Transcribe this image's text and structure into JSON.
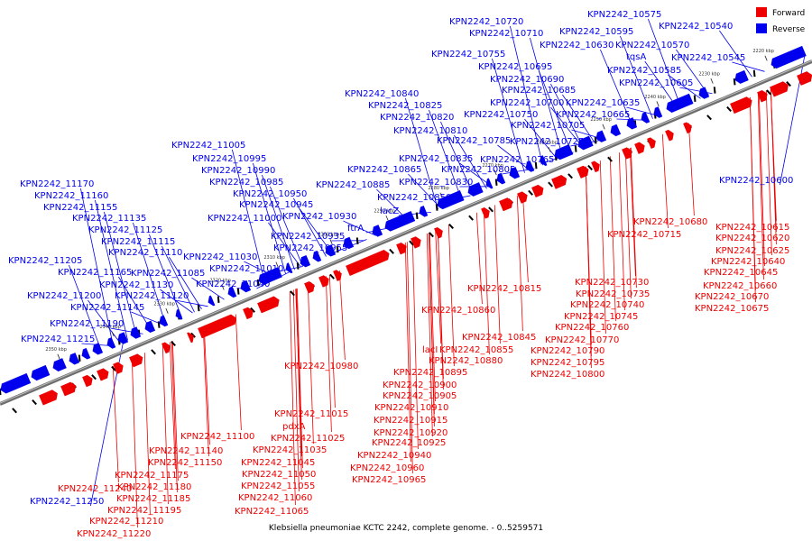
{
  "caption": "Klebsiella pneumoniae KCTC 2242, complete genome. - 0..5259571",
  "colors": {
    "forward": "#ee0000",
    "reverse": "#0000ee",
    "axis": "#555555",
    "background": "#ffffff"
  },
  "legend": [
    {
      "label": "Forward",
      "strand": "forward"
    },
    {
      "label": "Reverse",
      "strand": "reverse"
    }
  ],
  "ticks": [
    "2220 kbp",
    "2230 kbp",
    "2240 kbp",
    "2250 kbp",
    "2260 kbp",
    "2270 kbp",
    "2280 kbp",
    "2290 kbp",
    "2300 kbp",
    "2310 kbp",
    "2320 kbp",
    "2330 kbp",
    "2340 kbp",
    "2350 kbp"
  ],
  "reverse_genes": [
    "KPN2242_10575",
    "KPN2242_10540",
    "KPN2242_10720",
    "KPN2242_10710",
    "KPN2242_10595",
    "KPN2242_10630",
    "KPN2242_10570",
    "KPN2242_10755",
    "tqsA",
    "KPN2242_10545",
    "KPN2242_10695",
    "KPN2242_10585",
    "KPN2242_10690",
    "KPN2242_10605",
    "KPN2242_10685",
    "KPN2242_10840",
    "KPN2242_10700",
    "KPN2242_10635",
    "KPN2242_10825",
    "KPN2242_10750",
    "KPN2242_10665",
    "KPN2242_10820",
    "KPN2242_10705",
    "KPN2242_10810",
    "KPN2242_10785",
    "KPN2242_10725",
    "KPN2242_11005",
    "KPN2242_10835",
    "KPN2242_10765",
    "KPN2242_10995",
    "KPN2242_10865",
    "KPN2242_10805",
    "KPN2242_10990",
    "KPN2242_10830",
    "KPN2242_10600",
    "KPN2242_10985",
    "KPN2242_10885",
    "KPN2242_11170",
    "KPN2242_10950",
    "KPN2242_10850",
    "KPN2242_11160",
    "KPN2242_10945",
    "KPN2242_11155",
    "lacZ",
    "KPN2242_10930",
    "KPN2242_11000",
    "KPN2242_11135",
    "ftrA",
    "KPN2242_11125",
    "KPN2242_10935",
    "KPN2242_11115",
    "KPN2242_10955",
    "KPN2242_11110",
    "KPN2242_11205",
    "KPN2242_11030",
    "KPN2242_11085",
    "KPN2242_11165",
    "KPN2242_11010",
    "KPN2242_11130",
    "KPN2242_11040",
    "KPN2242_11200",
    "KPN2242_11120",
    "KPN2242_11145",
    "KPN2242_11190",
    "KPN2242_11215",
    "KPN2242_11250"
  ],
  "forward_genes": [
    "KPN2242_10680",
    "KPN2242_10615",
    "KPN2242_10715",
    "KPN2242_10620",
    "KPN2242_10625",
    "KPN2242_10640",
    "KPN2242_10645",
    "KPN2242_10660",
    "KPN2242_10730",
    "KPN2242_10815",
    "KPN2242_10670",
    "KPN2242_10735",
    "KPN2242_10740",
    "KPN2242_10675",
    "KPN2242_10860",
    "KPN2242_10745",
    "KPN2242_10760",
    "KPN2242_10845",
    "KPN2242_10770",
    "lacI",
    "KPN2242_10855",
    "KPN2242_10790",
    "KPN2242_10880",
    "KPN2242_10795",
    "KPN2242_10980",
    "KPN2242_10895",
    "KPN2242_10800",
    "KPN2242_10900",
    "KPN2242_10905",
    "KPN2242_10910",
    "KPN2242_11015",
    "KPN2242_10915",
    "pdxA",
    "KPN2242_10920",
    "KPN2242_11100",
    "KPN2242_11025",
    "KPN2242_10925",
    "KPN2242_11140",
    "KPN2242_11035",
    "KPN2242_10940",
    "KPN2242_11150",
    "KPN2242_11045",
    "KPN2242_10960",
    "KPN2242_11175",
    "KPN2242_11050",
    "KPN2242_10965",
    "KPN2242_11240",
    "KPN2242_11180",
    "KPN2242_11055",
    "KPN2242_11185",
    "KPN2242_11060",
    "KPN2242_11195",
    "KPN2242_11065",
    "KPN2242_11210",
    "KPN2242_11220"
  ]
}
